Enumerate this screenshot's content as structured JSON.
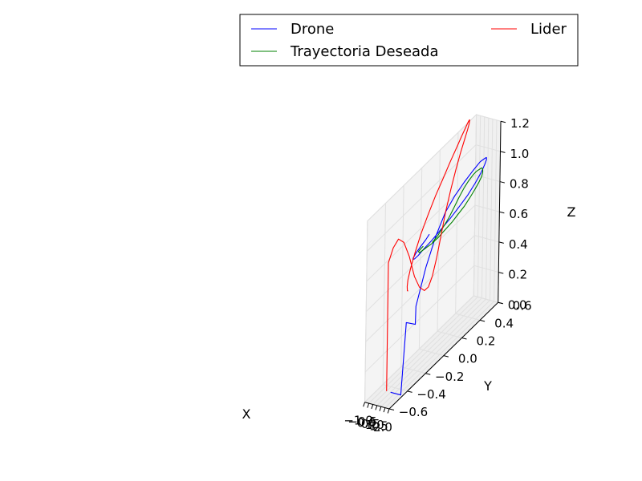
{
  "chart_data": {
    "type": "line",
    "projection": "3d",
    "title": "",
    "xlabel": "X",
    "ylabel": "Y",
    "zlabel": "Z",
    "xlim": [
      -1.0,
      2.0
    ],
    "ylim": [
      -0.6,
      0.6
    ],
    "zlim": [
      0.0,
      1.2
    ],
    "x_ticks": [
      "−1.0",
      "−0.5",
      "0.0",
      "0.5",
      "1.0",
      "1.5",
      "2.0"
    ],
    "y_ticks": [
      "−0.6",
      "−0.4",
      "−0.2",
      "0.0",
      "0.2",
      "0.4",
      "0.6"
    ],
    "z_ticks": [
      "0.0",
      "0.2",
      "0.4",
      "0.6",
      "0.8",
      "1.0",
      "1.2"
    ],
    "grid": true,
    "legend": {
      "position": "top-right",
      "columns": 2
    },
    "series": [
      {
        "name": "Drone",
        "color": "#0000ff",
        "x": [
          0.5,
          1.75,
          1.75,
          1.76,
          1.8,
          1.86,
          1.92,
          1.96,
          1.99,
          2.0,
          1.99,
          1.96,
          1.91,
          1.84,
          1.75,
          1.64,
          1.52,
          1.39,
          1.26,
          1.13,
          1.0,
          0.89,
          0.79,
          0.72,
          0.68,
          0.67,
          0.69,
          0.74,
          0.82,
          0.92,
          1.03,
          1.12
        ],
        "y": [
          -0.45,
          -0.45,
          -0.4,
          -0.3,
          -0.3,
          -0.2,
          -0.1,
          0.0,
          0.1,
          0.2,
          0.3,
          0.38,
          0.43,
          0.46,
          0.47,
          0.46,
          0.43,
          0.38,
          0.31,
          0.23,
          0.14,
          0.05,
          -0.04,
          -0.12,
          -0.18,
          -0.22,
          -0.24,
          -0.24,
          -0.22,
          -0.18,
          -0.13,
          -0.1
        ],
        "z": [
          0.0,
          0.0,
          0.45,
          0.38,
          0.5,
          0.7,
          0.85,
          0.95,
          1.0,
          1.03,
          1.05,
          1.06,
          1.05,
          1.04,
          1.02,
          0.99,
          0.95,
          0.91,
          0.87,
          0.84,
          0.81,
          0.79,
          0.77,
          0.76,
          0.75,
          0.75,
          0.76,
          0.77,
          0.79,
          0.81,
          0.83,
          0.85
        ]
      },
      {
        "name": "Trayectoria Deseada",
        "color": "#008000",
        "x": [
          1.5,
          1.62,
          1.74,
          1.83,
          1.9,
          1.95,
          1.98,
          1.99,
          1.98,
          1.95,
          1.9,
          1.83,
          1.74,
          1.63,
          1.51,
          1.38,
          1.25,
          1.12,
          1.0,
          0.89,
          0.8,
          0.73,
          0.69,
          0.68,
          0.7,
          0.75,
          0.83,
          0.93,
          1.04,
          1.16,
          1.28
        ],
        "y": [
          -0.1,
          -0.05,
          0.0,
          0.05,
          0.1,
          0.15,
          0.2,
          0.25,
          0.3,
          0.34,
          0.38,
          0.41,
          0.43,
          0.44,
          0.44,
          0.42,
          0.39,
          0.35,
          0.3,
          0.24,
          0.18,
          0.11,
          0.04,
          -0.03,
          -0.09,
          -0.14,
          -0.18,
          -0.2,
          -0.21,
          -0.2,
          -0.18
        ],
        "z": [
          0.8,
          0.82,
          0.85,
          0.88,
          0.92,
          0.96,
          0.99,
          1.01,
          1.02,
          1.02,
          1.01,
          1.0,
          0.98,
          0.95,
          0.92,
          0.89,
          0.86,
          0.83,
          0.8,
          0.78,
          0.76,
          0.75,
          0.74,
          0.74,
          0.75,
          0.76,
          0.77,
          0.79,
          0.8,
          0.81,
          0.82
        ]
      },
      {
        "name": "Lider",
        "color": "#ff0000",
        "x": [
          0.0,
          0.0,
          0.02,
          0.1,
          0.22,
          0.35,
          0.47,
          0.56,
          0.62,
          0.66,
          0.7,
          0.76,
          0.83,
          0.9,
          0.95,
          0.97,
          0.96,
          0.9,
          0.8,
          0.66,
          0.5,
          0.33,
          0.16,
          0.0,
          -0.14,
          -0.26,
          -0.36,
          -0.43,
          -0.47,
          -0.48,
          -0.44,
          -0.36,
          -0.24,
          -0.1,
          0.04,
          0.18,
          0.28
        ],
        "y": [
          -0.45,
          -0.45,
          -0.4,
          -0.35,
          -0.3,
          -0.25,
          -0.2,
          -0.15,
          -0.1,
          -0.06,
          -0.02,
          0.02,
          0.06,
          0.1,
          0.15,
          0.2,
          0.25,
          0.3,
          0.34,
          0.37,
          0.39,
          0.4,
          0.4,
          0.39,
          0.36,
          0.32,
          0.26,
          0.19,
          0.11,
          0.03,
          -0.05,
          -0.12,
          -0.18,
          -0.22,
          -0.24,
          -0.25,
          -0.25
        ],
        "z": [
          0.0,
          0.85,
          0.92,
          0.95,
          0.9,
          0.78,
          0.62,
          0.52,
          0.47,
          0.47,
          0.52,
          0.62,
          0.75,
          0.88,
          1.0,
          1.1,
          1.18,
          1.24,
          1.28,
          1.3,
          1.31,
          1.3,
          1.28,
          1.25,
          1.21,
          1.16,
          1.1,
          1.03,
          0.96,
          0.88,
          0.8,
          0.72,
          0.65,
          0.6,
          0.57,
          0.55,
          0.55
        ]
      }
    ]
  }
}
